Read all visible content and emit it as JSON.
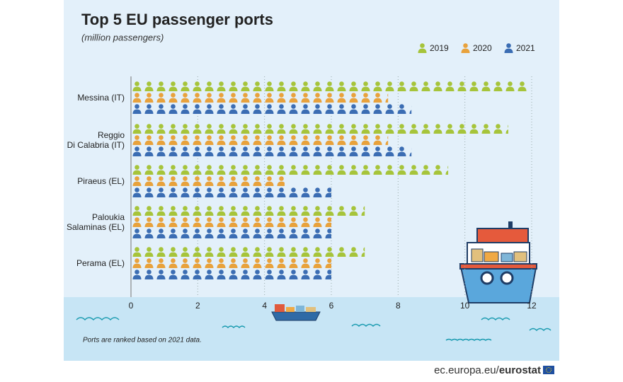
{
  "chart_data": {
    "type": "pictogram-bar",
    "title": "Top 5 EU passenger ports",
    "subtitle": "(million passengers)",
    "categories": [
      "Messina (IT)",
      "Reggio\nDi Calabria (IT)",
      "Piraeus (EL)",
      "Paloukia\nSalaminas (EL)",
      "Perama (EL)"
    ],
    "series": [
      {
        "name": "2019",
        "color": "#a6c43a",
        "values": [
          11.9,
          11.3,
          9.5,
          7.0,
          7.0
        ]
      },
      {
        "name": "2020",
        "color": "#e8a23c",
        "values": [
          7.7,
          7.7,
          4.6,
          6.0,
          6.0
        ]
      },
      {
        "name": "2021",
        "color": "#3b6db3",
        "values": [
          8.4,
          8.4,
          6.0,
          6.0,
          6.0
        ]
      }
    ],
    "xlim": [
      0,
      12
    ],
    "xticks": [
      0,
      2,
      4,
      6,
      8,
      10,
      12
    ],
    "grid": true,
    "note": "Ports are ranked based on 2021 data.",
    "source": [
      "ec.europa.eu/",
      "eurostat"
    ]
  }
}
